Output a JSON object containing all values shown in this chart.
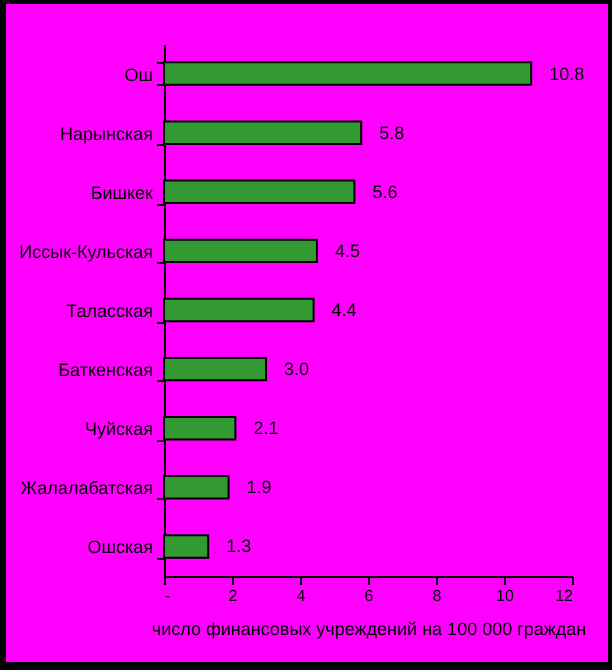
{
  "chart_data": {
    "type": "bar",
    "orientation": "horizontal",
    "xlabel": "число финансовых учреждений на 100 000 граждан",
    "categories": [
      "Ош",
      "Нарынская",
      "Бишкек",
      "Иссык-Кульская",
      "Таласская",
      "Баткенская",
      "Чуйская",
      "Жалалабатская",
      "Ошская"
    ],
    "values": [
      10.8,
      5.8,
      5.6,
      4.5,
      4.4,
      3.0,
      2.1,
      1.9,
      1.3
    ],
    "value_labels": [
      "10.8",
      "5.8",
      "5.6",
      "4.5",
      "4.4",
      "3.0",
      "2.1",
      "1.9",
      "1.3"
    ],
    "color": "#339933",
    "xlim": [
      0,
      12
    ],
    "xticks": [
      {
        "value": 0,
        "label": "-"
      },
      2,
      4,
      6,
      8,
      10,
      12
    ],
    "grid": false
  }
}
